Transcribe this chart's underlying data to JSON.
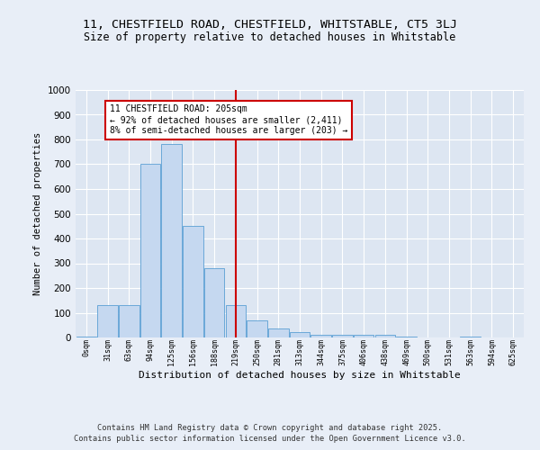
{
  "title1": "11, CHESTFIELD ROAD, CHESTFIELD, WHITSTABLE, CT5 3LJ",
  "title2": "Size of property relative to detached houses in Whitstable",
  "xlabel": "Distribution of detached houses by size in Whitstable",
  "ylabel": "Number of detached properties",
  "bar_labels": [
    "0sqm",
    "31sqm",
    "63sqm",
    "94sqm",
    "125sqm",
    "156sqm",
    "188sqm",
    "219sqm",
    "250sqm",
    "281sqm",
    "313sqm",
    "344sqm",
    "375sqm",
    "406sqm",
    "438sqm",
    "469sqm",
    "500sqm",
    "531sqm",
    "563sqm",
    "594sqm",
    "625sqm"
  ],
  "bar_values": [
    5,
    130,
    130,
    700,
    780,
    450,
    280,
    130,
    70,
    37,
    22,
    12,
    10,
    10,
    10,
    5,
    0,
    0,
    5,
    0,
    0
  ],
  "bar_color": "#c5d8f0",
  "bar_edge_color": "#5a9fd4",
  "vline_x": 7.0,
  "vline_color": "#cc0000",
  "annotation_text": "11 CHESTFIELD ROAD: 205sqm\n← 92% of detached houses are smaller (2,411)\n8% of semi-detached houses are larger (203) →",
  "annotation_box_color": "#ffffff",
  "annotation_box_edge": "#cc0000",
  "ylim": [
    0,
    1000
  ],
  "yticks": [
    0,
    100,
    200,
    300,
    400,
    500,
    600,
    700,
    800,
    900,
    1000
  ],
  "bg_color": "#e8eef7",
  "plot_bg": "#dde6f2",
  "grid_color": "#ffffff",
  "footer1": "Contains HM Land Registry data © Crown copyright and database right 2025.",
  "footer2": "Contains public sector information licensed under the Open Government Licence v3.0."
}
